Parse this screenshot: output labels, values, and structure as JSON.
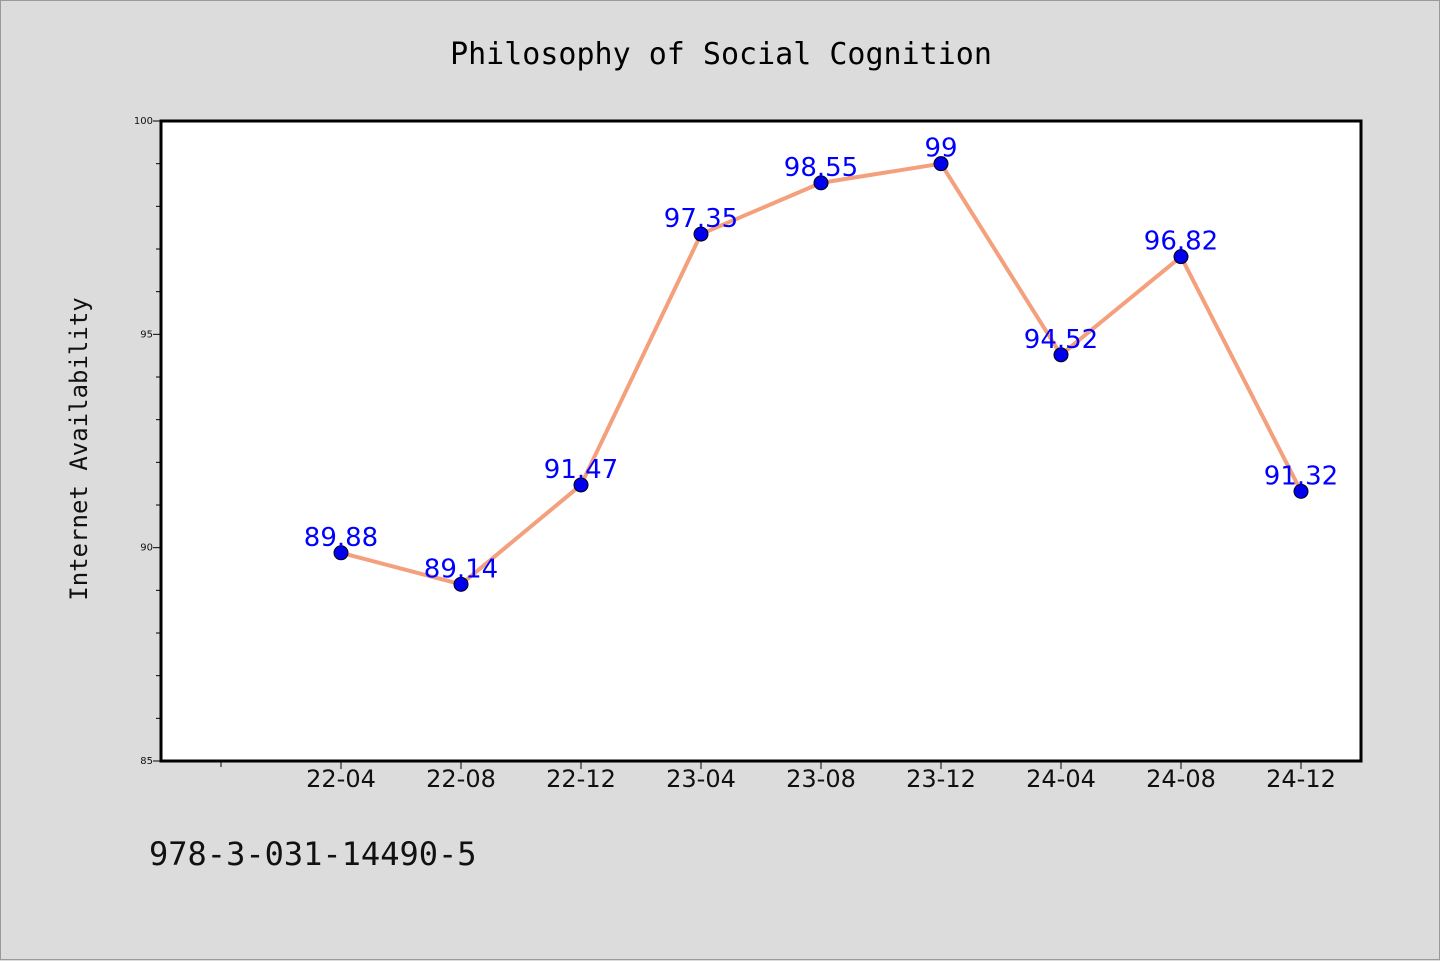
{
  "chart_data": {
    "type": "line",
    "title": "Philosophy of Social Cognition",
    "xlabel": "",
    "ylabel": "Internet Availability",
    "categories": [
      "22-04",
      "22-08",
      "22-12",
      "23-04",
      "23-08",
      "23-12",
      "24-04",
      "24-08",
      "24-12"
    ],
    "series": [
      {
        "values": [
          89.88,
          89.14,
          91.47,
          97.35,
          98.55,
          99,
          94.52,
          96.82,
          91.32
        ],
        "labels": [
          "89.88",
          "89.14",
          "91.47",
          "97.35",
          "98.55",
          "99",
          "94.52",
          "96.82",
          "91.32"
        ]
      }
    ],
    "ylim": [
      85,
      100
    ],
    "yticks": [
      "85",
      "90",
      "95",
      "100"
    ],
    "grid": false,
    "colors": {
      "line": "#f4a07c",
      "marker": "#0000ee",
      "label": "#0000ff",
      "background": "#dcdcdc",
      "plot_background": "#ffffff"
    }
  },
  "footer": {
    "isbn": "978-3-031-14490-5"
  }
}
